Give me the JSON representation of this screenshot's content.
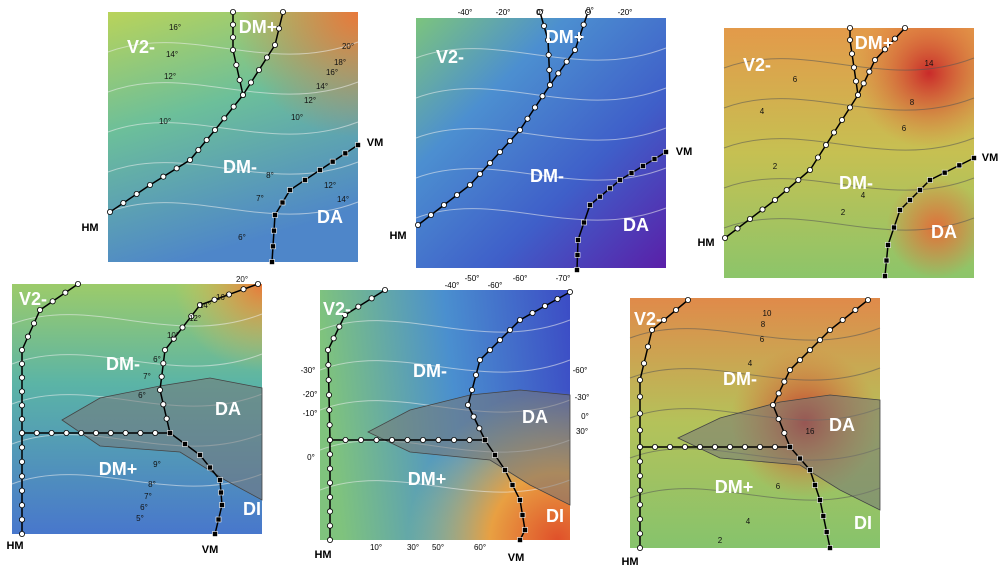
{
  "panels": [
    {
      "labels": [
        "V2-",
        "DM+",
        "DM-",
        "DA"
      ],
      "meridians": [
        "HM",
        "VM"
      ],
      "contours": [
        "16°",
        "14°",
        "12°",
        "10°",
        "20°",
        "18°",
        "16°",
        "14°",
        "12°",
        "10°",
        "8°",
        "7°",
        "6°",
        "12°",
        "14°"
      ]
    },
    {
      "labels": [
        "V2-",
        "DM+",
        "DM-",
        "DA"
      ],
      "meridians": [
        "HM",
        "VM"
      ],
      "ticks": [
        "-40°",
        "-20°",
        "0°",
        "0°",
        "-20°",
        "-50°",
        "-60°",
        "-70°"
      ]
    },
    {
      "labels": [
        "V2-",
        "DM+",
        "DM-",
        "DA"
      ],
      "meridians": [
        "HM",
        "VM"
      ],
      "contours": [
        "14",
        "6",
        "4",
        "8",
        "6",
        "2",
        "4",
        "2"
      ]
    },
    {
      "labels": [
        "V2-",
        "DM-",
        "DA",
        "DM+",
        "DI"
      ],
      "meridians": [
        "HM",
        "VM"
      ],
      "contours": [
        "20°",
        "16°",
        "14°",
        "12°",
        "10°",
        "6°",
        "7°",
        "6°",
        "9°",
        "8°",
        "7°",
        "6°",
        "5°"
      ]
    },
    {
      "labels": [
        "V2-",
        "DM-",
        "DA",
        "DM+",
        "DI"
      ],
      "meridians": [
        "HM",
        "VM"
      ],
      "ticks": [
        "-40°",
        "-60°",
        "-30°",
        "-20°",
        "-10°",
        "0°",
        "-60°",
        "-30°",
        "0°",
        "30°",
        "10°",
        "30°",
        "50°",
        "60°"
      ]
    },
    {
      "labels": [
        "V2-",
        "DM-",
        "DA",
        "DM+",
        "DI"
      ],
      "meridians": [
        "HM"
      ],
      "contours": [
        "10",
        "8",
        "6",
        "4",
        "16",
        "6",
        "4",
        "2"
      ]
    }
  ]
}
